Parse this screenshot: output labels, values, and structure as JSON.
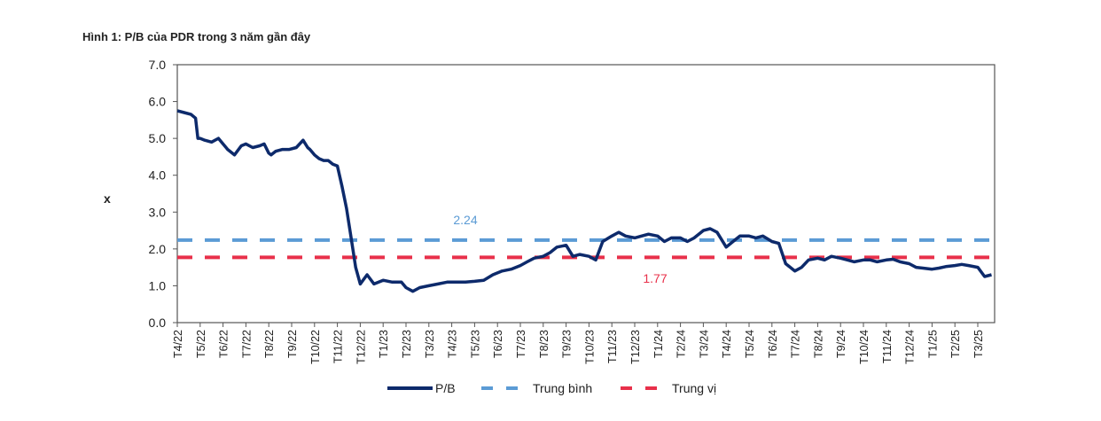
{
  "title": "Hình 1: P/B của PDR trong 3 năm gần đây",
  "chart_data": {
    "type": "line",
    "title": "Hình 1: P/B của PDR trong 3 năm gần đây",
    "xlabel": "",
    "ylabel": "x",
    "ylim": [
      0,
      7
    ],
    "yticks": [
      "0.0",
      "1.0",
      "2.0",
      "3.0",
      "4.0",
      "5.0",
      "6.0",
      "7.0"
    ],
    "yticks_values": [
      0,
      1,
      2,
      3,
      4,
      5,
      6,
      7
    ],
    "categories": [
      "T4/22",
      "T5/22",
      "T6/22",
      "T7/22",
      "T8/22",
      "T9/22",
      "T10/22",
      "T11/22",
      "T12/22",
      "T1/23",
      "T2/23",
      "T3/23",
      "T4/23",
      "T5/23",
      "T6/23",
      "T7/23",
      "T8/23",
      "T9/23",
      "T10/23",
      "T11/23",
      "T12/23",
      "T1/24",
      "T2/24",
      "T3/24",
      "T4/24",
      "T5/24",
      "T6/24",
      "T7/24",
      "T8/24",
      "T9/24",
      "T10/24",
      "T11/24",
      "T12/24",
      "T1/25",
      "T2/25",
      "T3/25"
    ],
    "grid": false,
    "legend_position": "bottom",
    "colors": {
      "pb": "#0d2a6b",
      "mean": "#5b9bd5",
      "median": "#e8304a"
    },
    "series": [
      {
        "name": "P/B",
        "x": [
          0,
          0.3,
          0.6,
          0.8,
          0.9,
          1.0,
          1.2,
          1.5,
          1.8,
          2.0,
          2.2,
          2.5,
          2.8,
          3.0,
          3.3,
          3.6,
          3.8,
          4.0,
          4.1,
          4.3,
          4.6,
          4.9,
          5.2,
          5.5,
          5.7,
          5.8,
          6.0,
          6.2,
          6.4,
          6.6,
          6.8,
          7.0,
          7.2,
          7.4,
          7.6,
          7.8,
          8.0,
          8.3,
          8.6,
          9.0,
          9.4,
          9.8,
          10.0,
          10.3,
          10.6,
          11.0,
          11.4,
          11.8,
          12.2,
          12.6,
          13.0,
          13.4,
          13.8,
          14.2,
          14.6,
          15.0,
          15.3,
          15.6,
          16.0,
          16.3,
          16.6,
          17.0,
          17.3,
          17.6,
          18.0,
          18.3,
          18.6,
          19.0,
          19.3,
          19.6,
          20.0,
          20.3,
          20.6,
          21.0,
          21.3,
          21.6,
          22.0,
          22.3,
          22.6,
          23.0,
          23.3,
          23.6,
          24.0,
          24.3,
          24.6,
          25.0,
          25.3,
          25.6,
          26.0,
          26.3,
          26.6,
          27.0,
          27.3,
          27.6,
          28.0,
          28.3,
          28.6,
          29.0,
          29.3,
          29.6,
          30.0,
          30.3,
          30.6,
          31.0,
          31.3,
          31.6,
          32.0,
          32.3,
          32.6,
          33.0,
          33.3,
          33.6,
          34.0,
          34.3,
          34.6,
          35.0,
          35.3,
          35.6
        ],
        "values": [
          5.75,
          5.7,
          5.65,
          5.55,
          5.0,
          5.0,
          4.95,
          4.9,
          5.0,
          4.85,
          4.7,
          4.55,
          4.8,
          4.85,
          4.75,
          4.8,
          4.85,
          4.6,
          4.55,
          4.65,
          4.7,
          4.7,
          4.75,
          4.95,
          4.75,
          4.7,
          4.55,
          4.45,
          4.4,
          4.4,
          4.3,
          4.25,
          3.7,
          3.1,
          2.3,
          1.5,
          1.05,
          1.3,
          1.05,
          1.15,
          1.1,
          1.1,
          0.95,
          0.85,
          0.95,
          1.0,
          1.05,
          1.1,
          1.1,
          1.1,
          1.12,
          1.15,
          1.3,
          1.4,
          1.45,
          1.55,
          1.65,
          1.75,
          1.8,
          1.9,
          2.05,
          2.1,
          1.8,
          1.85,
          1.8,
          1.7,
          2.2,
          2.35,
          2.45,
          2.35,
          2.3,
          2.35,
          2.4,
          2.35,
          2.2,
          2.3,
          2.3,
          2.2,
          2.3,
          2.5,
          2.55,
          2.45,
          2.05,
          2.2,
          2.35,
          2.35,
          2.3,
          2.35,
          2.2,
          2.15,
          1.6,
          1.4,
          1.5,
          1.7,
          1.75,
          1.7,
          1.8,
          1.75,
          1.7,
          1.65,
          1.7,
          1.7,
          1.65,
          1.7,
          1.72,
          1.65,
          1.6,
          1.5,
          1.48,
          1.45,
          1.48,
          1.52,
          1.55,
          1.58,
          1.55,
          1.5,
          1.25,
          1.3
        ]
      },
      {
        "name": "Trung bình",
        "value": 2.24,
        "label": "2.24"
      },
      {
        "name": "Trung vị",
        "value": 1.77,
        "label": "1.77"
      }
    ],
    "annotations": [
      "2.24",
      "1.77"
    ]
  },
  "legend": {
    "pb": "P/B",
    "mean": "Trung bình",
    "median": "Trung vị"
  }
}
